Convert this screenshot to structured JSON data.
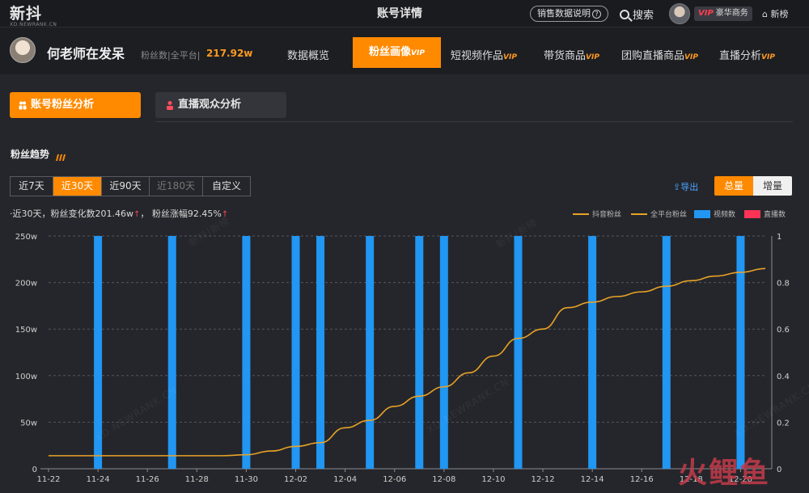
{
  "header": {
    "logo": "新抖",
    "logo_sub": "XD.NEWRANK.CN",
    "page_title": "账号详情",
    "sales_help": "销售数据说明",
    "search": "搜索",
    "vip_label": "VIP",
    "vip_plan": "豪华商务",
    "new_list": "新榜"
  },
  "account": {
    "name": "何老师在发呆",
    "fans_label": "粉丝数|全平台|",
    "fans_value": "217.92w"
  },
  "nav": {
    "items": [
      {
        "label": "数据概览",
        "vip": ""
      },
      {
        "label": "粉丝画像",
        "vip": "VIP"
      },
      {
        "label": "短视频作品",
        "vip": "VIP"
      },
      {
        "label": "带货商品",
        "vip": "VIP"
      },
      {
        "label": "团购直播商品",
        "vip": "VIP"
      },
      {
        "label": "直播分析",
        "vip": "VIP"
      }
    ]
  },
  "subtabs": {
    "fans": "账号粉丝分析",
    "live": "直播观众分析"
  },
  "section": {
    "title": "粉丝趋势"
  },
  "ranges": [
    "近7天",
    "近30天",
    "近90天",
    "近180天",
    "自定义"
  ],
  "export_label": "导出",
  "toggle": {
    "total": "总量",
    "increase": "增量"
  },
  "summary": {
    "text1": "·近30天，粉丝变化数201.46w",
    "text2": "粉丝涨幅92.45%"
  },
  "legend": [
    {
      "name": "抖音粉丝",
      "kind": "line",
      "color": "#e8a227"
    },
    {
      "name": "全平台粉丝",
      "kind": "line",
      "color": "#e8a227"
    },
    {
      "name": "视频数",
      "kind": "bar",
      "color": "#2196f3"
    },
    {
      "name": "直播数",
      "kind": "bar",
      "color": "#ff3355"
    }
  ],
  "watermark": "XD.NEWRANK.CN",
  "watermark2": "新抖|新榜",
  "brand_mark": "火鲤鱼",
  "colors": {
    "accent": "#ff8a00",
    "line": "#e8a227",
    "bar": "#2196f3",
    "live": "#ff3355"
  },
  "chart_data": {
    "type": "line",
    "x": [
      "11-22",
      "11-23",
      "11-24",
      "11-25",
      "11-26",
      "11-27",
      "11-28",
      "11-29",
      "11-30",
      "12-01",
      "12-02",
      "12-03",
      "12-04",
      "12-05",
      "12-06",
      "12-07",
      "12-08",
      "12-09",
      "12-10",
      "12-11",
      "12-12",
      "12-13",
      "12-14",
      "12-15",
      "12-16",
      "12-17",
      "12-18",
      "12-19",
      "12-20",
      "12-21"
    ],
    "x_tick_labels": [
      "11-22",
      "11-24",
      "11-26",
      "11-28",
      "11-30",
      "12-02",
      "12-04",
      "12-06",
      "12-08",
      "12-10",
      "12-12",
      "12-14",
      "12-16",
      "12-18",
      "12-20"
    ],
    "yleft_ticks": [
      "0",
      "50w",
      "100w",
      "150w",
      "200w",
      "250w"
    ],
    "yleft_lim": [
      0,
      250
    ],
    "yright_ticks": [
      "0",
      "0.2",
      "0.4",
      "0.6",
      "0.8",
      "1"
    ],
    "yright_lim": [
      0,
      1
    ],
    "grid": true,
    "series": [
      {
        "name": "全平台粉丝",
        "kind": "line",
        "axis": "left",
        "values": [
          14,
          14,
          14,
          14,
          14,
          14,
          14,
          14,
          15,
          19,
          24,
          28,
          44,
          52,
          67,
          78,
          88,
          103,
          121,
          140,
          150,
          173,
          179,
          185,
          190,
          196,
          202,
          207,
          211,
          215
        ]
      },
      {
        "name": "视频数",
        "kind": "bar",
        "axis": "right",
        "values": [
          0,
          0,
          1,
          0,
          0,
          1,
          0,
          0,
          1,
          0,
          1,
          1,
          0,
          1,
          0,
          1,
          1,
          0,
          0,
          1,
          0,
          0,
          1,
          0,
          0,
          1,
          0,
          0,
          1,
          0
        ]
      }
    ]
  }
}
